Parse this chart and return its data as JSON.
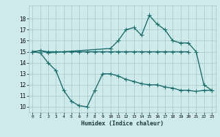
{
  "xlabel": "Humidex (Indice chaleur)",
  "bg_color": "#ceeaea",
  "grid_color": "#aacccc",
  "line_color": "#1a6b6b",
  "x_ticks": [
    0,
    1,
    2,
    3,
    4,
    5,
    6,
    7,
    8,
    9,
    10,
    11,
    12,
    13,
    14,
    15,
    16,
    17,
    18,
    19,
    20,
    21,
    22,
    23
  ],
  "y_ticks": [
    10,
    11,
    12,
    13,
    14,
    15,
    16,
    17,
    18
  ],
  "ylim": [
    9.5,
    19.2
  ],
  "xlim": [
    -0.5,
    23.5
  ],
  "line1_x": [
    0,
    1,
    2,
    3,
    4,
    5,
    6,
    7,
    8,
    9,
    10,
    11,
    12,
    13,
    14,
    15,
    16,
    17,
    18,
    19,
    20
  ],
  "line1_y": [
    15.0,
    15.1,
    15.0,
    15.0,
    15.0,
    15.0,
    15.0,
    15.0,
    15.0,
    15.0,
    15.0,
    15.0,
    15.0,
    15.0,
    15.0,
    15.0,
    15.0,
    15.0,
    15.0,
    15.0,
    15.0
  ],
  "line2_x": [
    0,
    1,
    2,
    10,
    11,
    12,
    13,
    14,
    15,
    16,
    17,
    18,
    19,
    20,
    21,
    22,
    23
  ],
  "line2_y": [
    15.0,
    15.1,
    14.9,
    15.3,
    16.0,
    17.0,
    17.2,
    16.5,
    18.3,
    17.5,
    17.0,
    16.0,
    15.8,
    15.8,
    15.0,
    12.0,
    11.5
  ],
  "line3_x": [
    0,
    1,
    2,
    3,
    4,
    5,
    6,
    7,
    8,
    9,
    10,
    11,
    12,
    13,
    14,
    15,
    16,
    17,
    18,
    19,
    20,
    21,
    22,
    23
  ],
  "line3_y": [
    15.0,
    14.9,
    14.0,
    13.3,
    11.5,
    10.5,
    10.1,
    10.0,
    11.5,
    13.0,
    13.0,
    12.8,
    12.5,
    12.3,
    12.1,
    12.0,
    12.0,
    11.8,
    11.7,
    11.5,
    11.5,
    11.4,
    11.5,
    11.5
  ]
}
